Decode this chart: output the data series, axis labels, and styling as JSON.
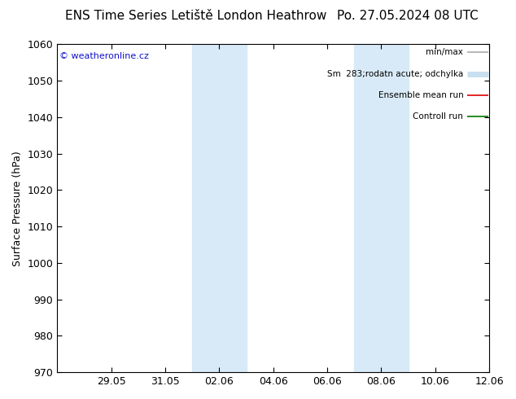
{
  "title_left": "ENS Time Series Letiště London Heathrow",
  "title_right": "Po. 27.05.2024 08 UTC",
  "ylabel": "Surface Pressure (hPa)",
  "ylim": [
    970,
    1060
  ],
  "yticks": [
    970,
    980,
    990,
    1000,
    1010,
    1020,
    1030,
    1040,
    1050,
    1060
  ],
  "xtick_labels": [
    "29.05",
    "31.05",
    "02.06",
    "04.06",
    "06.06",
    "08.06",
    "10.06",
    "12.06"
  ],
  "xtick_positions": [
    2,
    4,
    6,
    8,
    10,
    12,
    14,
    16
  ],
  "xlim": [
    0,
    16
  ],
  "shade_bands": [
    {
      "x_start": 5.0,
      "x_end": 7.0,
      "color": "#d8eaf7"
    },
    {
      "x_start": 11.0,
      "x_end": 13.0,
      "color": "#d8eaf7"
    }
  ],
  "watermark_text": "© weatheronline.cz",
  "watermark_color": "#1111cc",
  "legend_items": [
    {
      "label": "min/max",
      "color": "#aaaaaa",
      "lw": 1.2
    },
    {
      "label": "Sm  283;rodatn acute; odchylka",
      "color": "#c8dff0",
      "lw": 5
    },
    {
      "label": "Ensemble mean run",
      "color": "#dd0000",
      "lw": 1.2
    },
    {
      "label": "Controll run",
      "color": "#007700",
      "lw": 1.2
    }
  ],
  "bg_color": "#ffffff",
  "spine_color": "#000000",
  "title_fontsize": 11,
  "ylabel_fontsize": 9,
  "tick_fontsize": 9,
  "legend_fontsize": 7.5,
  "watermark_fontsize": 8
}
